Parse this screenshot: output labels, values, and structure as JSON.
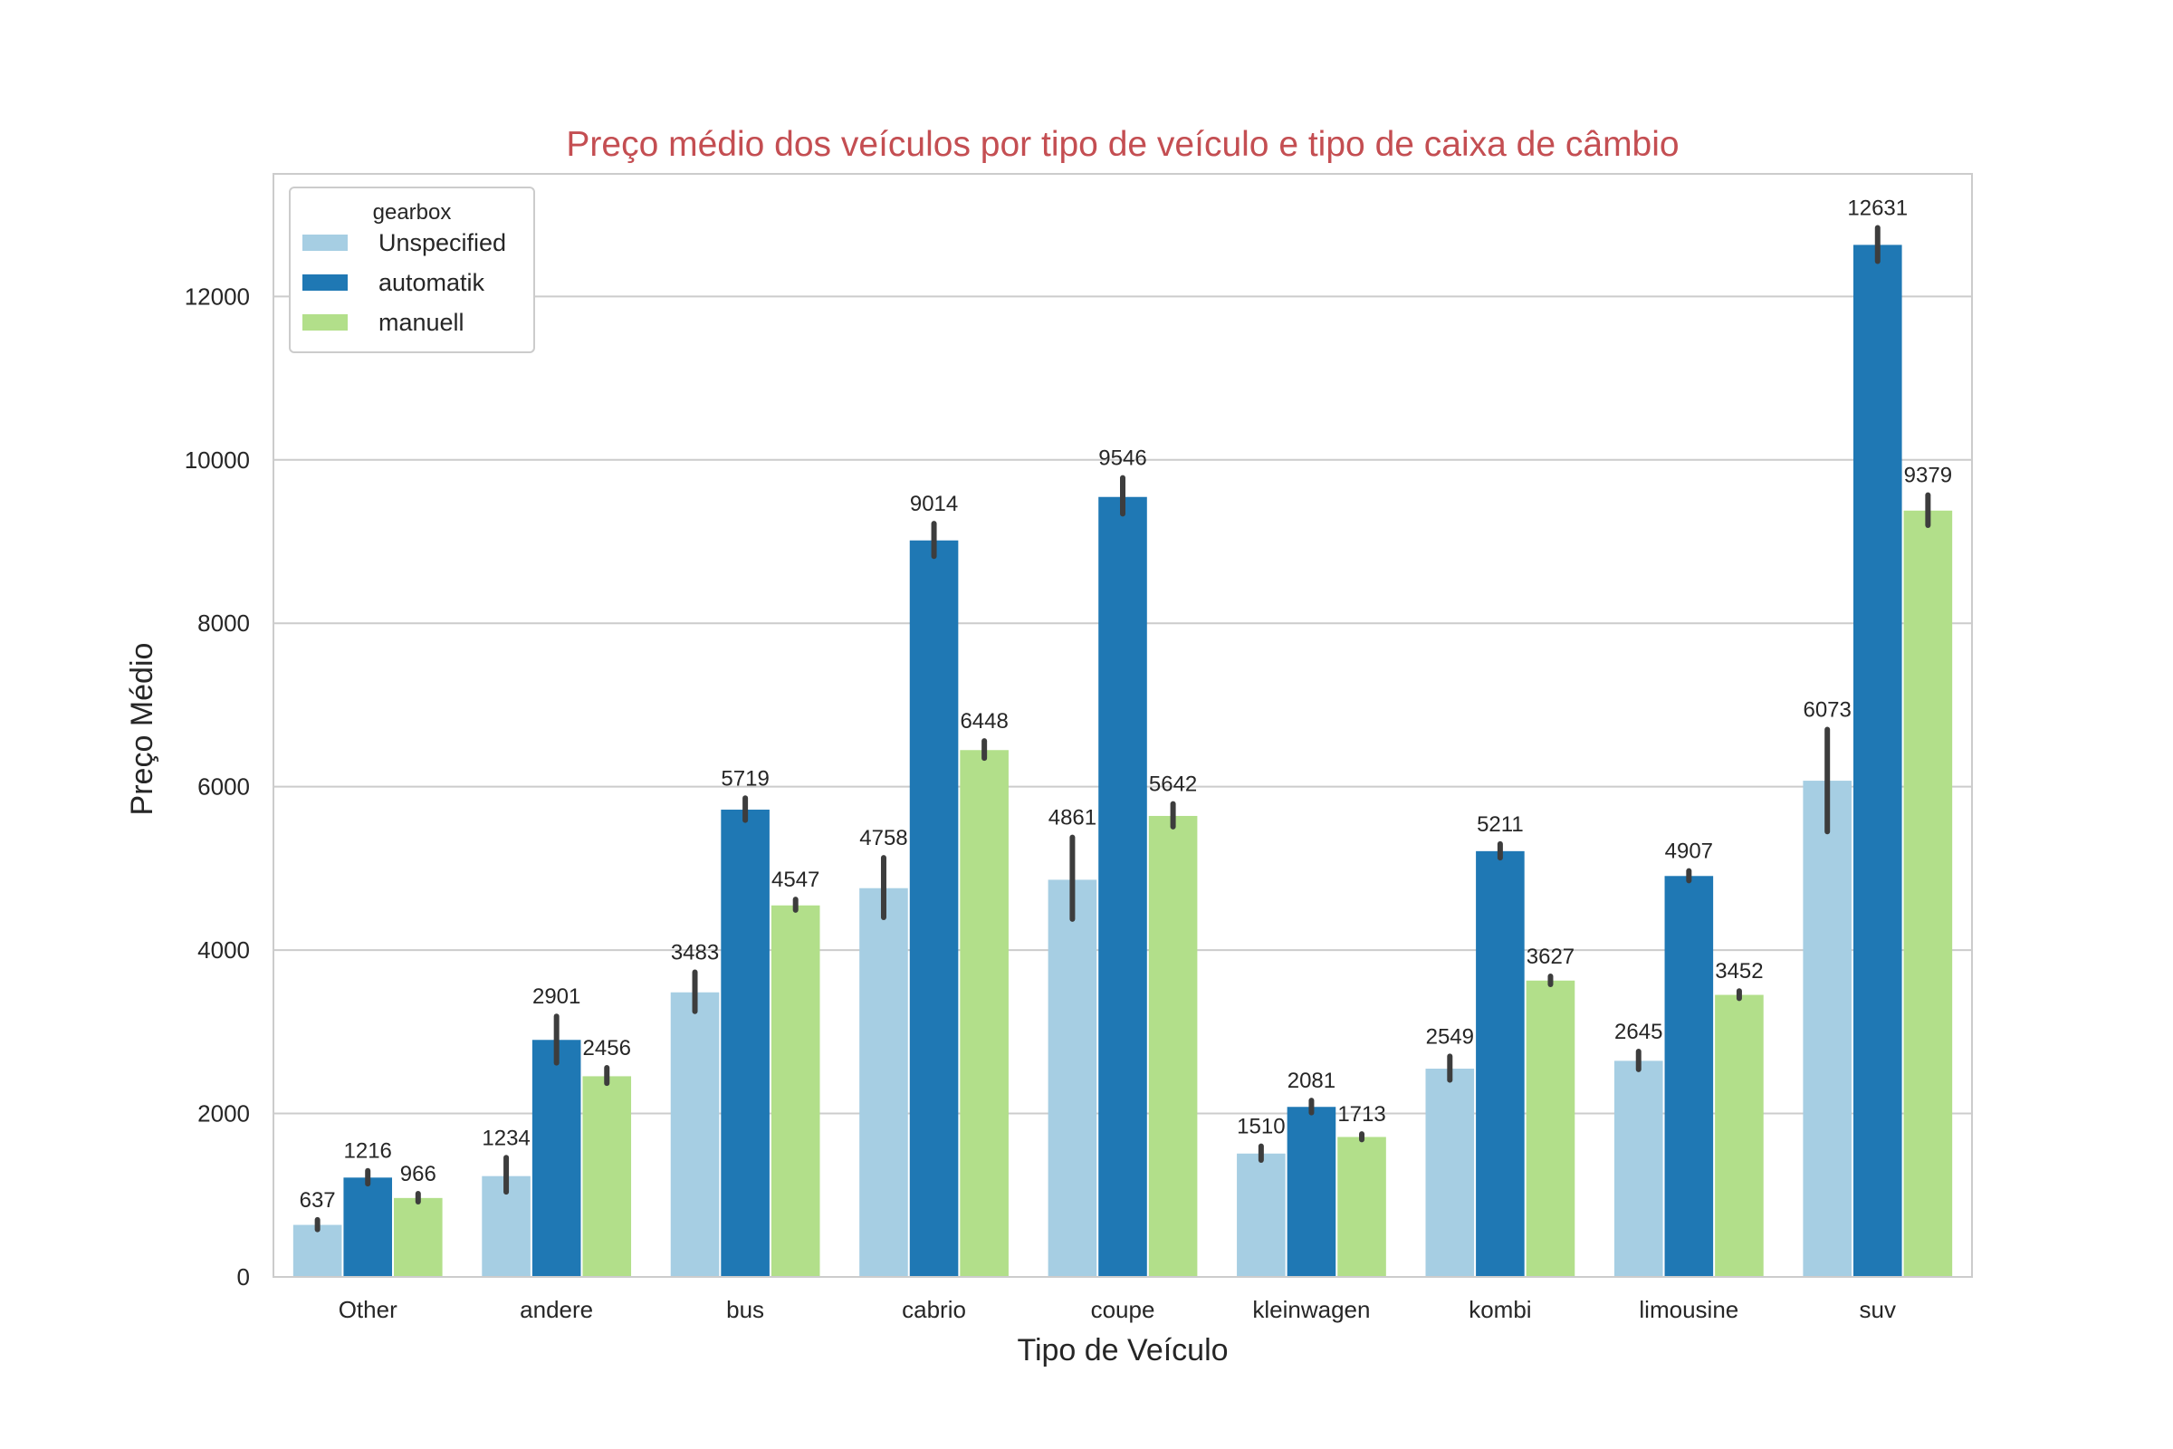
{
  "colors": {
    "title": "#c44e52",
    "grid": "#cccccc",
    "frame": "#cccccc",
    "text": "#262626",
    "errorbar": "#3d3d3d"
  },
  "chart_data": {
    "type": "bar",
    "title": "Preço médio dos veículos por tipo de veículo e tipo de caixa de câmbio",
    "xlabel": "Tipo de Veículo",
    "ylabel": "Preço Médio",
    "ylim": [
      0,
      13500
    ],
    "yticks": [
      0,
      2000,
      4000,
      6000,
      8000,
      10000,
      12000
    ],
    "grid": true,
    "legend": {
      "title": "gearbox",
      "position": "top-left"
    },
    "categories": [
      "Other",
      "andere",
      "bus",
      "cabrio",
      "coupe",
      "kleinwagen",
      "kombi",
      "limousine",
      "suv"
    ],
    "series": [
      {
        "name": "Unspecified",
        "color": "#a6cee3",
        "values": [
          637,
          1234,
          3483,
          4758,
          4861,
          1510,
          2549,
          2645,
          6073
        ],
        "ci_low": [
          580,
          1040,
          3250,
          4400,
          4380,
          1430,
          2410,
          2540,
          5450
        ],
        "ci_high": [
          700,
          1460,
          3730,
          5130,
          5380,
          1600,
          2700,
          2760,
          6700
        ]
      },
      {
        "name": "automatik",
        "color": "#1f78b4",
        "values": [
          1216,
          2901,
          5719,
          9014,
          9546,
          2081,
          5211,
          4907,
          12631
        ],
        "ci_low": [
          1140,
          2620,
          5590,
          8820,
          9340,
          2010,
          5130,
          4850,
          12430
        ],
        "ci_high": [
          1300,
          3190,
          5860,
          9220,
          9780,
          2160,
          5300,
          4970,
          12840
        ]
      },
      {
        "name": "manuell",
        "color": "#b2df8a",
        "values": [
          966,
          2456,
          4547,
          6448,
          5642,
          1713,
          3627,
          3452,
          9379
        ],
        "ci_low": [
          920,
          2370,
          4490,
          6350,
          5510,
          1680,
          3580,
          3410,
          9200
        ],
        "ci_high": [
          1020,
          2560,
          4620,
          6560,
          5790,
          1750,
          3680,
          3500,
          9570
        ]
      }
    ]
  }
}
